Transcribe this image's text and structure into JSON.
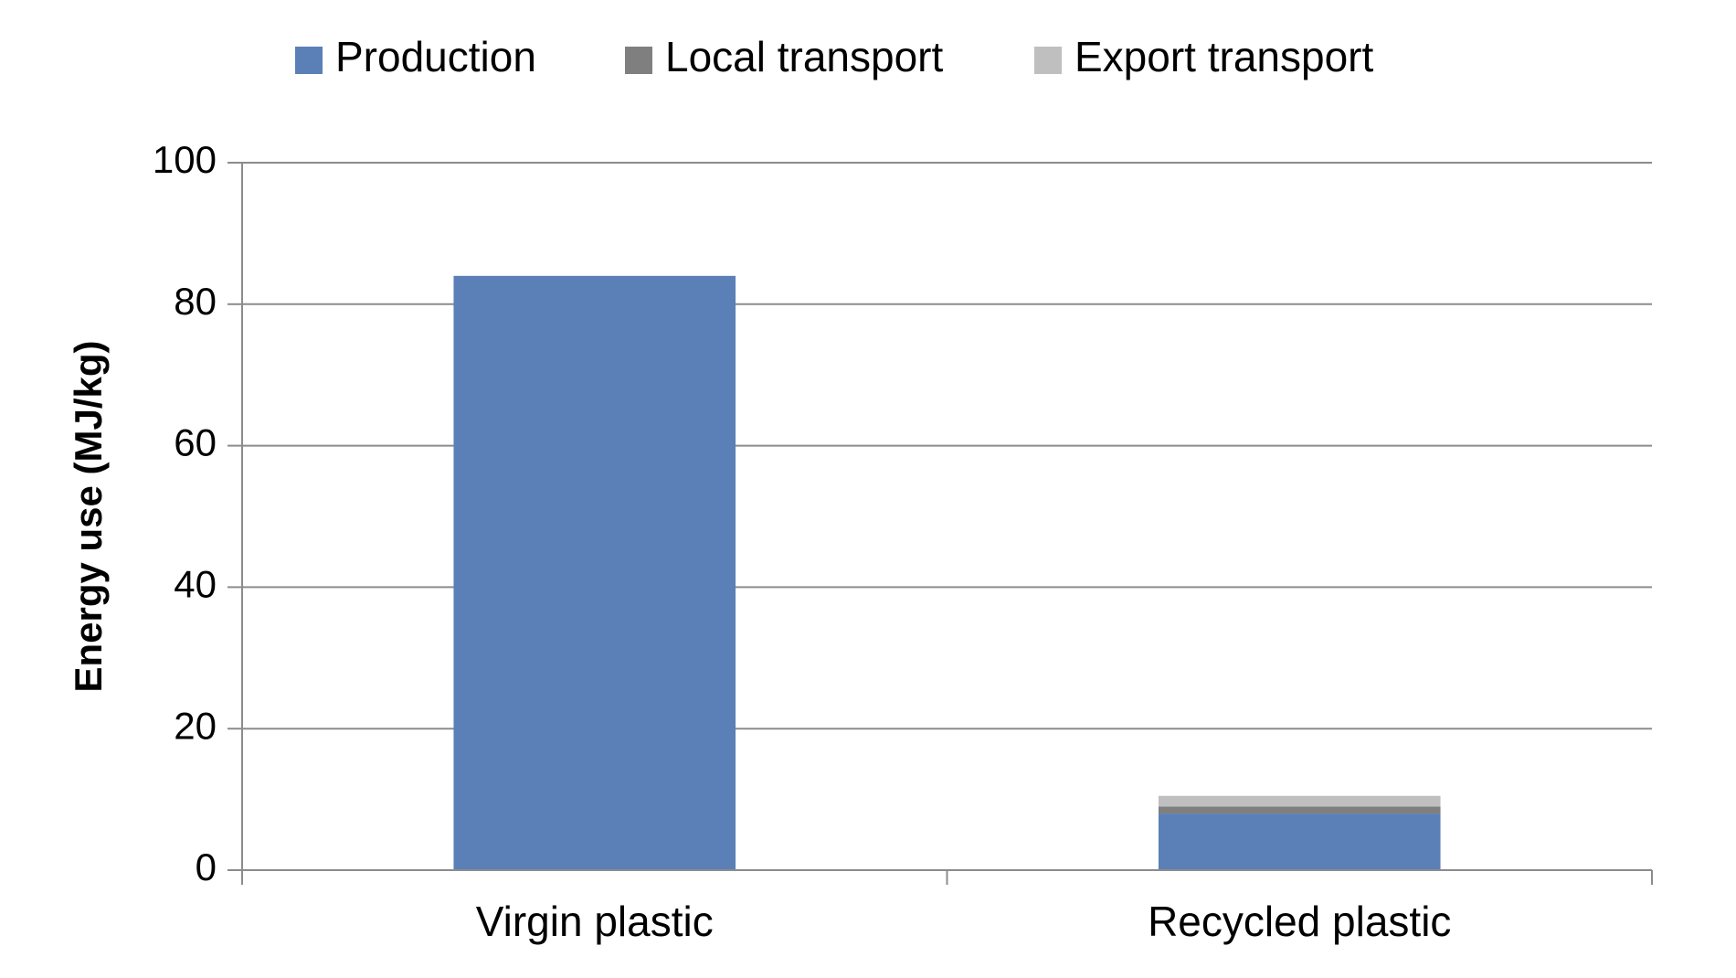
{
  "chart_data": {
    "type": "bar",
    "stacked": true,
    "categories": [
      "Virgin plastic",
      "Recycled plastic"
    ],
    "series": [
      {
        "name": "Production",
        "values": [
          84,
          8
        ],
        "color": "#5b80b7"
      },
      {
        "name": "Local transport",
        "values": [
          0,
          1
        ],
        "color": "#7f7f7f"
      },
      {
        "name": "Export transport",
        "values": [
          0,
          1.5
        ],
        "color": "#bfbfbf"
      }
    ],
    "title": "",
    "xlabel": "",
    "ylabel": "Energy use (MJ/kg)",
    "ylim": [
      0,
      100
    ],
    "yticks": [
      "0",
      "20",
      "40",
      "60",
      "80",
      "100"
    ],
    "grid": true,
    "legend_position": "top"
  }
}
